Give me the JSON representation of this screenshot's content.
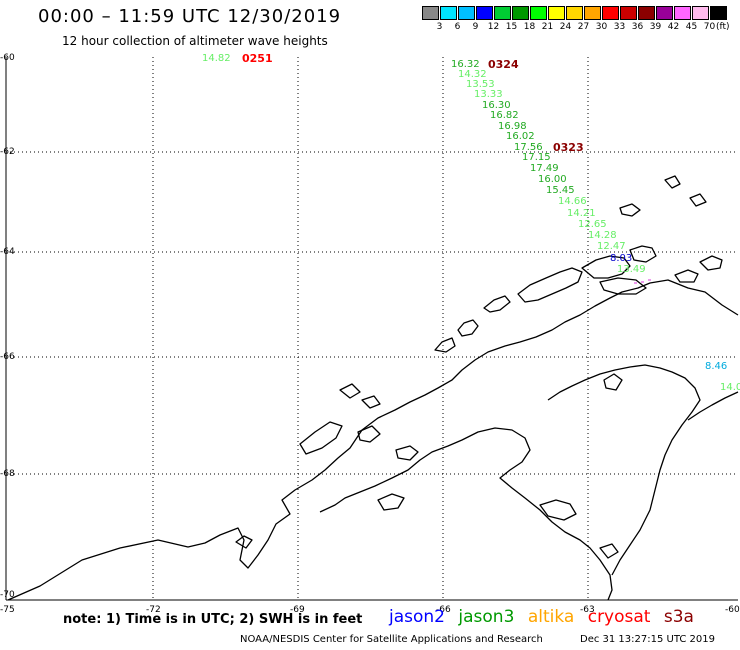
{
  "title": "00:00 – 11:59 UTC 12/30/2019",
  "subtitle": "12 hour collection of altimeter wave heights",
  "colorbar": {
    "colors": [
      "#888888",
      "#00e5ff",
      "#00bfff",
      "#0000ff",
      "#00cc33",
      "#009900",
      "#00ff00",
      "#ffff00",
      "#ffd700",
      "#ffa500",
      "#ff0000",
      "#cc0000",
      "#8b0000",
      "#990099",
      "#ff66ff",
      "#ffbbee",
      "#000000"
    ],
    "labels": [
      "3",
      "6",
      "9",
      "12",
      "15",
      "18",
      "21",
      "24",
      "27",
      "30",
      "33",
      "36",
      "39",
      "42",
      "45",
      "70"
    ],
    "unit": "(ft)"
  },
  "map": {
    "lat_labels": [
      "-60",
      "-62",
      "-64",
      "-66",
      "-68",
      "-70"
    ],
    "lon_labels": [
      "-72",
      "-69",
      "-66",
      "-63"
    ],
    "corner_labels": [
      "-75",
      "-60"
    ]
  },
  "tracks": [
    {
      "label": "0251",
      "color": "#ff0000"
    },
    {
      "label": "0324",
      "color": "#8b0000"
    },
    {
      "label": "0323",
      "color": "#8b0000"
    }
  ],
  "observations": [
    {
      "value": "14.82",
      "color": "#66ee66"
    },
    {
      "value": "16.32",
      "color": "#22aa22"
    },
    {
      "value": "14.32",
      "color": "#66ee66"
    },
    {
      "value": "13.53",
      "color": "#66ee66"
    },
    {
      "value": "13.33",
      "color": "#66ee66"
    },
    {
      "value": "16.30",
      "color": "#22aa22"
    },
    {
      "value": "16.82",
      "color": "#22aa22"
    },
    {
      "value": "16.98",
      "color": "#22aa22"
    },
    {
      "value": "16.02",
      "color": "#22aa22"
    },
    {
      "value": "17.56",
      "color": "#22aa22"
    },
    {
      "value": "17.15",
      "color": "#22aa22"
    },
    {
      "value": "17.49",
      "color": "#22aa22"
    },
    {
      "value": "16.00",
      "color": "#22aa22"
    },
    {
      "value": "15.45",
      "color": "#22aa22"
    },
    {
      "value": "14.66",
      "color": "#66ee66"
    },
    {
      "value": "14.21",
      "color": "#66ee66"
    },
    {
      "value": "12.65",
      "color": "#66ee66"
    },
    {
      "value": "14.28",
      "color": "#66ee66"
    },
    {
      "value": "12.47",
      "color": "#66ee66"
    },
    {
      "value": "8.03",
      "color": "#0000cc"
    },
    {
      "value": "13.49",
      "color": "#66ee66"
    },
    {
      "value": "8.46",
      "color": "#00aadd"
    },
    {
      "value": "14.0",
      "color": "#66ee66"
    }
  ],
  "note": "note:  1) Time is in UTC;  2) SWH is in feet",
  "legend": [
    {
      "name": "jason2",
      "color": "#0000ff"
    },
    {
      "name": "jason3",
      "color": "#009900"
    },
    {
      "name": "altika",
      "color": "#ffa500"
    },
    {
      "name": "cryosat",
      "color": "#ff0000"
    },
    {
      "name": "s3a",
      "color": "#8b0000"
    }
  ],
  "credit": "NOAA/NESDIS Center for Satellite Applications and Research",
  "timestamp": "Dec 31 13:27:15 UTC 2019"
}
